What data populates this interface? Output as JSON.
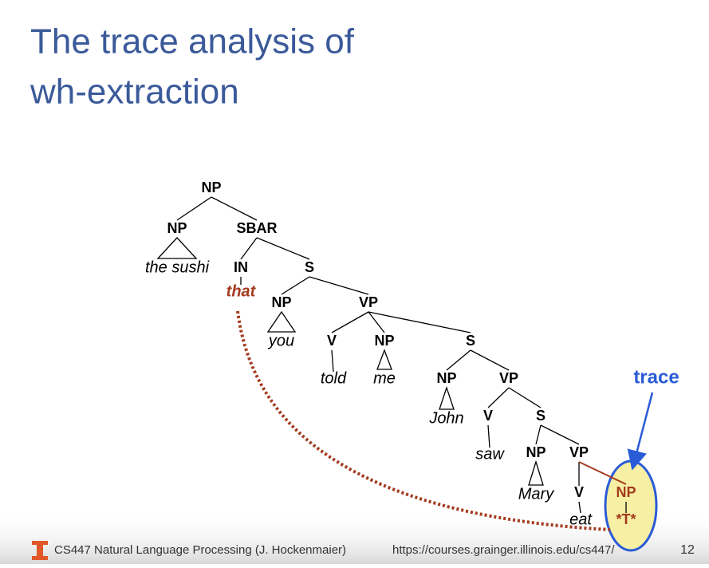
{
  "title": [
    "The trace analysis of",
    "wh-extraction"
  ],
  "tree": {
    "nodes": [
      "NP",
      "NP",
      "SBAR",
      "the sushi",
      "IN",
      "S",
      "that",
      "NP",
      "VP",
      "you",
      "V",
      "NP",
      "S",
      "told",
      "me",
      "NP",
      "VP",
      "John",
      "V",
      "S",
      "saw",
      "NP",
      "VP",
      "Mary",
      "V",
      "NP",
      "eat",
      "*T*"
    ]
  },
  "annotation": "trace",
  "footer": {
    "course": "CS447 Natural Language Processing (J. Hockenmaier)",
    "url": "https://courses.grainger.illinois.edu/cs447/",
    "page": "12"
  }
}
